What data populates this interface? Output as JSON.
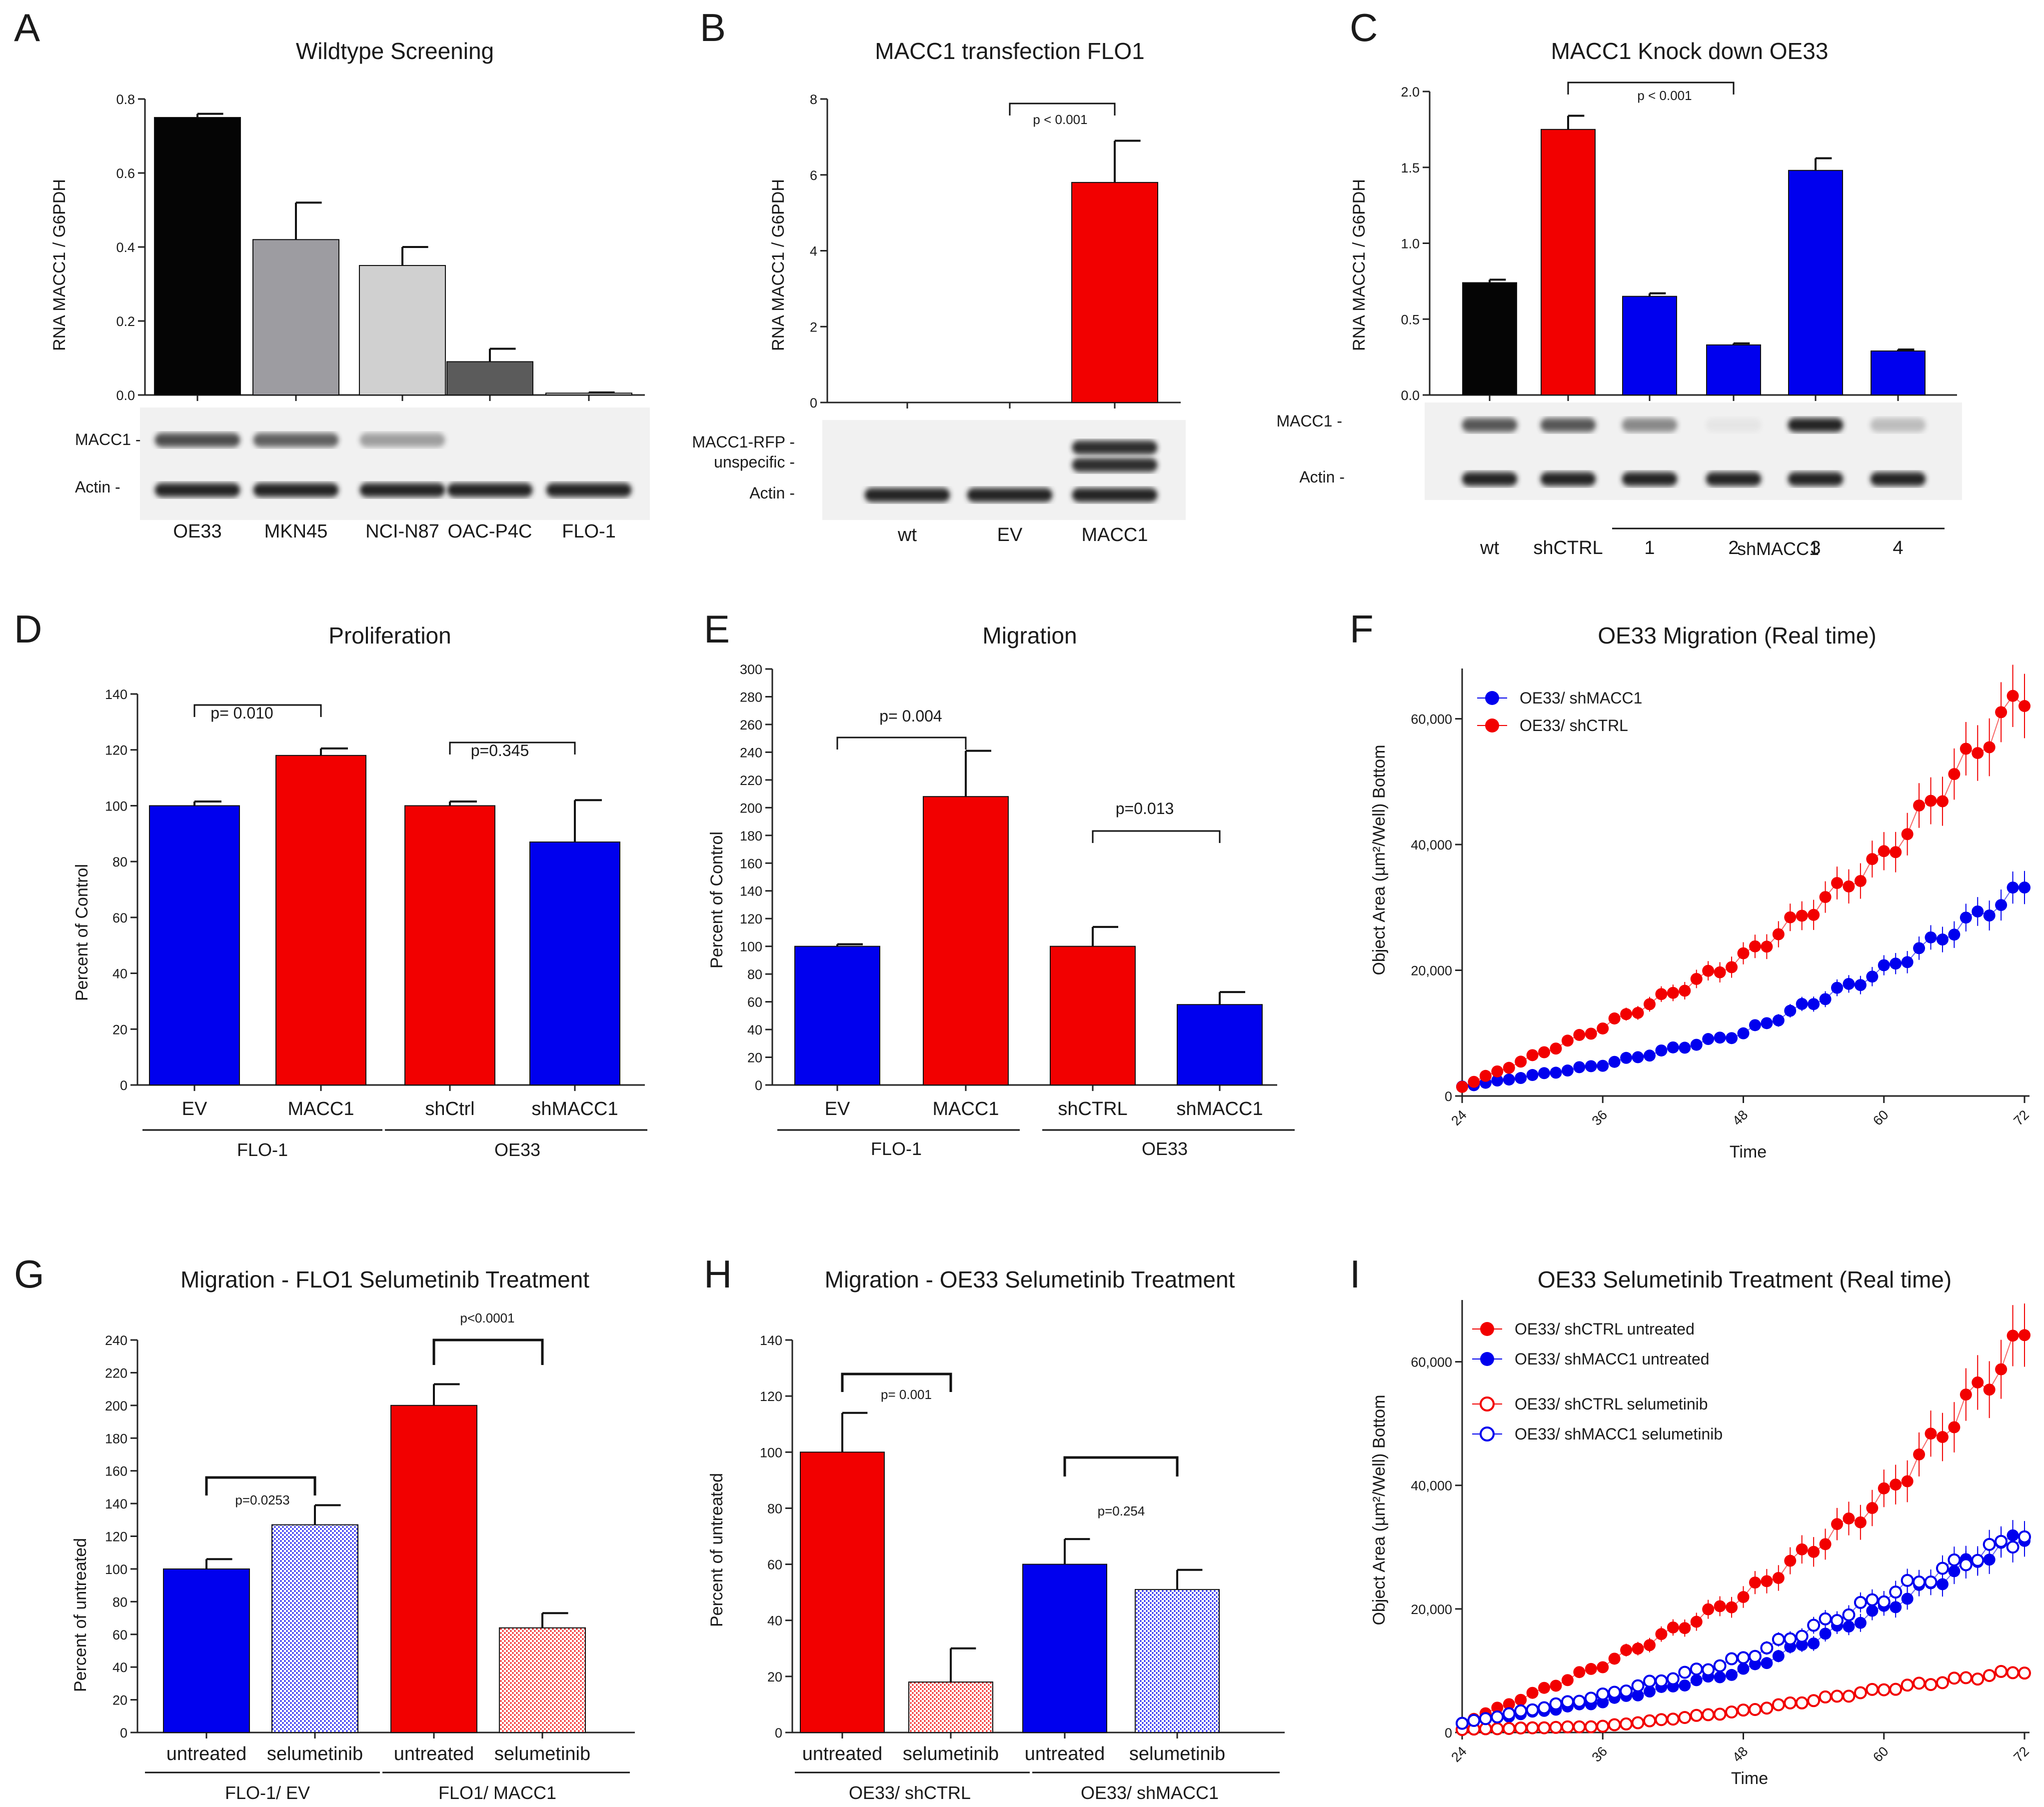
{
  "colors": {
    "black": "#050505",
    "gray1": "#9d9ca1",
    "gray2": "#d0d0d0",
    "gray3": "#5b5b5b",
    "red": "#f20000",
    "blue": "#0000ee",
    "white": "#ffffff"
  },
  "chart_data": [
    {
      "id": "A",
      "panel_label": "A",
      "type": "bar",
      "title": "Wildtype Screening",
      "ylabel": "RNA MACC1 / G6PDH",
      "categories": [
        "OE33",
        "MKN45",
        "NCI-N87",
        "OAC-P4C",
        "FLO-1"
      ],
      "values": [
        0.75,
        0.42,
        0.35,
        0.09,
        0.005
      ],
      "errors": [
        0.01,
        0.1,
        0.05,
        0.035,
        0.002
      ],
      "colors": [
        "#050505",
        "#9d9ca1",
        "#d0d0d0",
        "#5b5b5b",
        "#d0d0d0"
      ],
      "ylim": [
        0,
        0.8
      ],
      "yticks": [
        "0.0",
        "0.2",
        "0.4",
        "0.6",
        "0.8"
      ],
      "blot_labels": [
        "MACC1 -",
        "Actin -"
      ]
    },
    {
      "id": "B",
      "panel_label": "B",
      "type": "bar",
      "title": "MACC1 transfection FLO1",
      "ylabel": "RNA MACC1 / G6PDH",
      "categories": [
        "wt",
        "EV",
        "MACC1"
      ],
      "values": [
        0,
        0,
        5.8
      ],
      "errors": [
        0,
        0,
        1.1
      ],
      "colors": [
        "#f20000",
        "#f20000",
        "#f20000"
      ],
      "ylim": [
        0,
        8
      ],
      "yticks": [
        "0",
        "2",
        "4",
        "6",
        "8"
      ],
      "pvalues": [
        "p < 0.001"
      ],
      "blot_labels": [
        "MACC1-RFP -",
        "unspecific -",
        "Actin -"
      ]
    },
    {
      "id": "C",
      "panel_label": "C",
      "type": "bar",
      "title": "MACC1 Knock down OE33",
      "ylabel": "RNA MACC1 / G6PDH",
      "categories": [
        "wt",
        "shCTRL",
        "1",
        "2",
        "3",
        "4"
      ],
      "values": [
        0.74,
        1.75,
        0.65,
        0.33,
        1.48,
        0.29
      ],
      "errors": [
        0.02,
        0.09,
        0.02,
        0.01,
        0.08,
        0.01
      ],
      "colors": [
        "#050505",
        "#f20000",
        "#0000ee",
        "#0000ee",
        "#0000ee",
        "#0000ee"
      ],
      "ylim": [
        0,
        2.0
      ],
      "yticks": [
        "0.0",
        "0.5",
        "1.0",
        "1.5",
        "2.0"
      ],
      "pvalues": [
        "p < 0.001"
      ],
      "group_labels": [
        "shMACC1"
      ],
      "blot_labels": [
        "MACC1 -",
        "Actin -"
      ]
    },
    {
      "id": "D",
      "panel_label": "D",
      "type": "bar",
      "title": "Proliferation",
      "ylabel": "Percent of Control",
      "categories": [
        "EV",
        "MACC1",
        "shCtrl",
        "shMACC1"
      ],
      "values": [
        100,
        118,
        100,
        87
      ],
      "errors": [
        1.5,
        2.5,
        1.5,
        15
      ],
      "colors": [
        "#0000ee",
        "#f20000",
        "#f20000",
        "#0000ee"
      ],
      "ylim": [
        0,
        140
      ],
      "yticks": [
        "0",
        "20",
        "40",
        "60",
        "80",
        "100",
        "120",
        "140"
      ],
      "pvalues": [
        "p= 0.010",
        "p=0.345"
      ],
      "group_labels": [
        "FLO-1",
        "OE33"
      ]
    },
    {
      "id": "E",
      "panel_label": "E",
      "type": "bar",
      "title": "Migration",
      "ylabel": "Percent of Control",
      "categories": [
        "EV",
        "MACC1",
        "shCTRL",
        "shMACC1"
      ],
      "values": [
        100,
        208,
        100,
        58
      ],
      "errors": [
        1.5,
        33,
        14,
        9
      ],
      "colors": [
        "#0000ee",
        "#f20000",
        "#f20000",
        "#0000ee"
      ],
      "ylim": [
        0,
        300
      ],
      "yticks": [
        "0",
        "20",
        "40",
        "60",
        "80",
        "100",
        "120",
        "140",
        "160",
        "180",
        "200",
        "220",
        "240",
        "260",
        "280",
        "300"
      ],
      "pvalues": [
        "p= 0.004",
        "p=0.013"
      ],
      "group_labels": [
        "FLO-1",
        "OE33"
      ]
    },
    {
      "id": "F",
      "panel_label": "F",
      "type": "scatter",
      "title": "OE33 Migration (Real time)",
      "ylabel": "Object Area (µm²/Well) Bottom",
      "xlabel": "Time",
      "xlim": [
        24,
        72
      ],
      "ylim": [
        0,
        68000
      ],
      "xticks": [
        "24",
        "36",
        "48",
        "60",
        "72"
      ],
      "yticks": [
        "0",
        "20,000",
        "40,000",
        "60,000"
      ],
      "series": [
        {
          "name": "OE33/ shMACC1",
          "color": "#0000ee",
          "marker": "filled",
          "x": [
            24,
            36,
            48,
            60,
            72
          ],
          "y": [
            1500,
            5000,
            10000,
            20000,
            33000
          ]
        },
        {
          "name": "OE33/ shCTRL",
          "color": "#f20000",
          "marker": "filled",
          "x": [
            24,
            36,
            48,
            60,
            72
          ],
          "y": [
            1500,
            11000,
            22000,
            38000,
            64000
          ]
        }
      ]
    },
    {
      "id": "G",
      "panel_label": "G",
      "type": "bar",
      "title": "Migration - FLO1 Selumetinib Treatment",
      "ylabel": "Percent of  untreated",
      "categories": [
        "untreated",
        "selumetinib",
        "untreated",
        "selumetinib"
      ],
      "values": [
        100,
        127,
        200,
        64
      ],
      "errors": [
        6,
        12,
        13,
        9
      ],
      "colors": [
        "#0000ee",
        "#0000ee",
        "#f20000",
        "#f20000"
      ],
      "patterns": [
        false,
        true,
        false,
        true
      ],
      "ylim": [
        0,
        240
      ],
      "yticks": [
        "0",
        "20",
        "40",
        "60",
        "80",
        "100",
        "120",
        "140",
        "160",
        "180",
        "200",
        "220",
        "240"
      ],
      "pvalues": [
        "p=0.0253",
        "p<0.0001"
      ],
      "group_labels": [
        "FLO-1/ EV",
        "FLO1/ MACC1"
      ]
    },
    {
      "id": "H",
      "panel_label": "H",
      "type": "bar",
      "title": "Migration - OE33 Selumetinib  Treatment",
      "ylabel": "Percent of untreated",
      "categories": [
        "untreated",
        "selumetinib",
        "untreated",
        "selumetinib"
      ],
      "values": [
        100,
        18,
        60,
        51
      ],
      "errors": [
        14,
        12,
        9,
        7
      ],
      "colors": [
        "#f20000",
        "#f20000",
        "#0000ee",
        "#0000ee"
      ],
      "patterns": [
        false,
        true,
        false,
        true
      ],
      "ylim": [
        0,
        140
      ],
      "yticks": [
        "0",
        "20",
        "40",
        "60",
        "80",
        "100",
        "120",
        "140"
      ],
      "pvalues": [
        "p= 0.001",
        "p=0.254"
      ],
      "group_labels": [
        "OE33/ shCTRL",
        "OE33/ shMACC1"
      ]
    },
    {
      "id": "I",
      "panel_label": "I",
      "type": "scatter",
      "title": "OE33 Selumetinib Treatment (Real time)",
      "ylabel": "Object Area (µm²/Well) Bottom",
      "xlabel": "Time",
      "xlim": [
        24,
        72
      ],
      "ylim": [
        0,
        70000
      ],
      "xticks": [
        "24",
        "36",
        "48",
        "60",
        "72"
      ],
      "yticks": [
        "0",
        "20,000",
        "40,000",
        "60,000"
      ],
      "series": [
        {
          "name": "OE33/ shCTRL untreated",
          "color": "#f20000",
          "marker": "filled",
          "x": [
            24,
            36,
            48,
            60,
            72
          ],
          "y": [
            1500,
            11000,
            22000,
            38000,
            64000
          ]
        },
        {
          "name": "OE33/ shMACC1 untreated",
          "color": "#0000ee",
          "marker": "filled",
          "x": [
            24,
            36,
            48,
            60,
            72
          ],
          "y": [
            1500,
            5000,
            10000,
            20000,
            32000
          ]
        },
        {
          "name": "OE33/ shCTRL selumetinib",
          "color": "#f20000",
          "marker": "open",
          "x": [
            24,
            36,
            48,
            60,
            72
          ],
          "y": [
            500,
            1000,
            3500,
            7000,
            10000
          ]
        },
        {
          "name": "OE33/ shMACC1 selumetinib",
          "color": "#0000ee",
          "marker": "open",
          "x": [
            24,
            36,
            48,
            60,
            72
          ],
          "y": [
            1500,
            6000,
            12000,
            22000,
            32000
          ]
        }
      ]
    }
  ]
}
